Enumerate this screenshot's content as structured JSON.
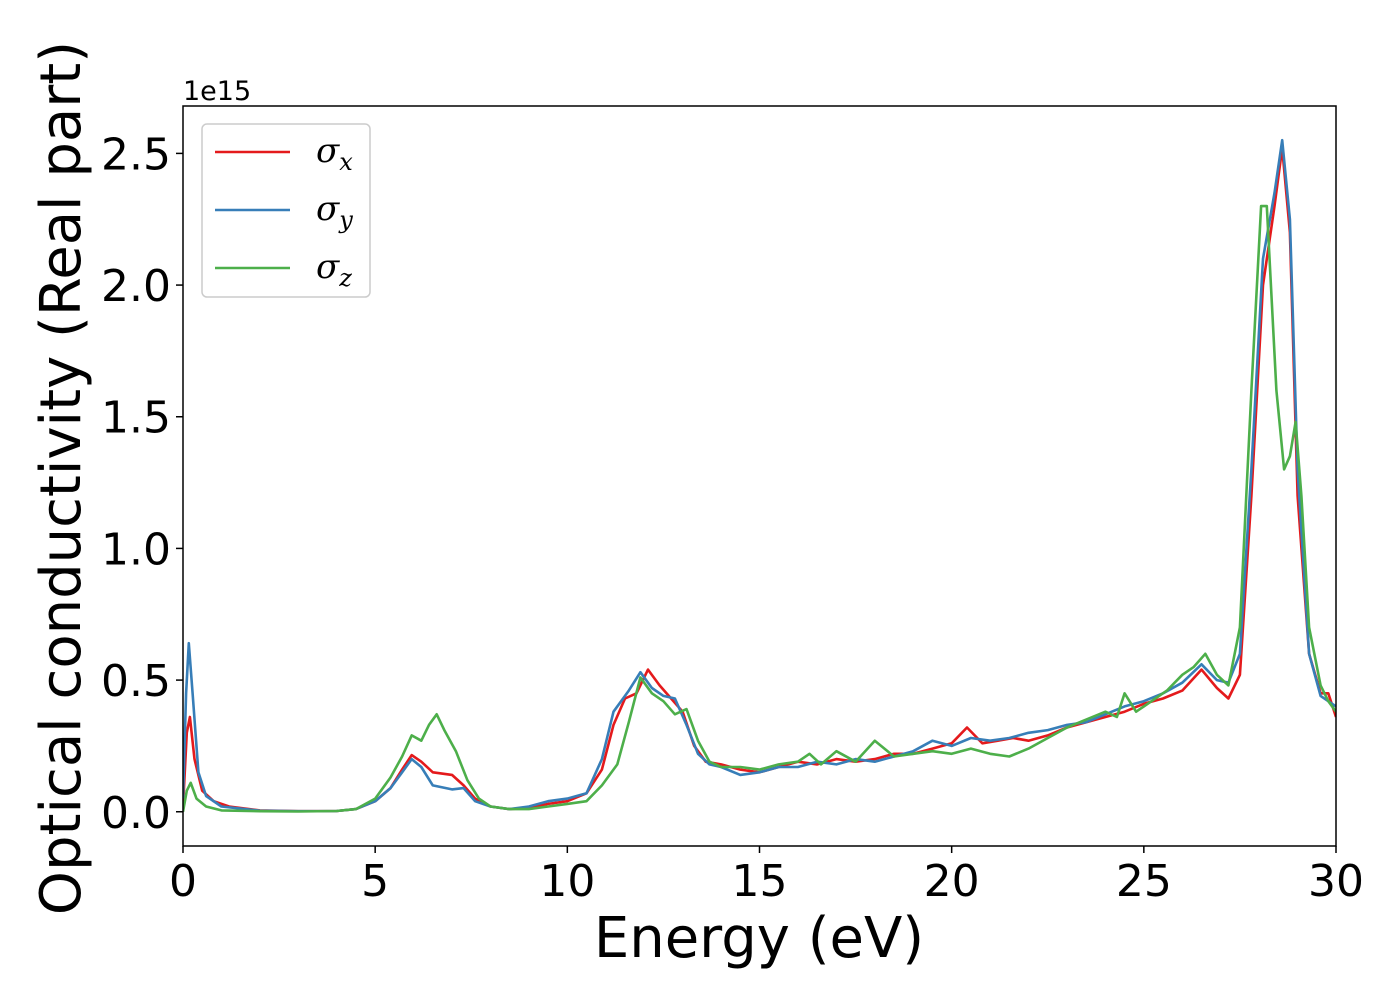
{
  "chart_data": {
    "type": "line",
    "title": "",
    "xlabel": "Energy (eV)",
    "ylabel": "Optical conductivity (Real part)",
    "y_offset_text": "1e15",
    "xlim": [
      0,
      30
    ],
    "ylim": [
      -0.13,
      2.68
    ],
    "xticks": [
      0,
      5,
      10,
      15,
      20,
      25,
      30
    ],
    "xtick_labels": [
      "0",
      "5",
      "10",
      "15",
      "20",
      "25",
      "30"
    ],
    "yticks": [
      0.0,
      0.5,
      1.0,
      1.5,
      2.0,
      2.5
    ],
    "ytick_labels": [
      "0.0",
      "0.5",
      "1.0",
      "1.5",
      "2.0",
      "2.5"
    ],
    "grid": false,
    "legend": {
      "position": "upper-left",
      "entries": [
        {
          "symbol": "σ",
          "sub": "x"
        },
        {
          "symbol": "σ",
          "sub": "y"
        },
        {
          "symbol": "σ",
          "sub": "z"
        }
      ]
    },
    "series": [
      {
        "color": "#e41a1c",
        "points": [
          [
            0,
            0.02
          ],
          [
            0.1,
            0.3
          ],
          [
            0.18,
            0.36
          ],
          [
            0.3,
            0.2
          ],
          [
            0.5,
            0.08
          ],
          [
            0.8,
            0.04
          ],
          [
            1.2,
            0.02
          ],
          [
            2,
            0.005
          ],
          [
            3,
            0.002
          ],
          [
            4,
            0.003
          ],
          [
            4.5,
            0.01
          ],
          [
            5,
            0.04
          ],
          [
            5.4,
            0.09
          ],
          [
            5.7,
            0.16
          ],
          [
            5.95,
            0.215
          ],
          [
            6.2,
            0.19
          ],
          [
            6.5,
            0.15
          ],
          [
            7,
            0.14
          ],
          [
            7.3,
            0.1
          ],
          [
            7.6,
            0.05
          ],
          [
            8,
            0.02
          ],
          [
            8.5,
            0.01
          ],
          [
            9,
            0.015
          ],
          [
            9.5,
            0.03
          ],
          [
            10,
            0.04
          ],
          [
            10.5,
            0.07
          ],
          [
            10.9,
            0.16
          ],
          [
            11.2,
            0.33
          ],
          [
            11.5,
            0.43
          ],
          [
            11.8,
            0.45
          ],
          [
            12.1,
            0.54
          ],
          [
            12.4,
            0.48
          ],
          [
            12.7,
            0.43
          ],
          [
            13,
            0.38
          ],
          [
            13.3,
            0.25
          ],
          [
            13.6,
            0.19
          ],
          [
            14,
            0.18
          ],
          [
            14.5,
            0.16
          ],
          [
            15,
            0.15
          ],
          [
            15.5,
            0.17
          ],
          [
            16,
            0.19
          ],
          [
            16.5,
            0.18
          ],
          [
            17,
            0.2
          ],
          [
            17.5,
            0.19
          ],
          [
            18,
            0.2
          ],
          [
            18.5,
            0.22
          ],
          [
            19,
            0.22
          ],
          [
            19.5,
            0.24
          ],
          [
            20,
            0.26
          ],
          [
            20.4,
            0.32
          ],
          [
            20.8,
            0.26
          ],
          [
            21.2,
            0.27
          ],
          [
            21.6,
            0.28
          ],
          [
            22,
            0.27
          ],
          [
            22.5,
            0.29
          ],
          [
            23,
            0.32
          ],
          [
            23.5,
            0.34
          ],
          [
            24,
            0.36
          ],
          [
            24.5,
            0.38
          ],
          [
            25,
            0.41
          ],
          [
            25.5,
            0.43
          ],
          [
            26,
            0.46
          ],
          [
            26.5,
            0.54
          ],
          [
            26.9,
            0.47
          ],
          [
            27.2,
            0.43
          ],
          [
            27.5,
            0.52
          ],
          [
            27.8,
            1.2
          ],
          [
            28.1,
            2.0
          ],
          [
            28.4,
            2.3
          ],
          [
            28.6,
            2.52
          ],
          [
            28.8,
            2.2
          ],
          [
            29.0,
            1.2
          ],
          [
            29.3,
            0.6
          ],
          [
            29.6,
            0.45
          ],
          [
            29.8,
            0.45
          ],
          [
            30,
            0.36
          ]
        ]
      },
      {
        "color": "#377eb8",
        "points": [
          [
            0,
            0.05
          ],
          [
            0.08,
            0.45
          ],
          [
            0.15,
            0.64
          ],
          [
            0.25,
            0.45
          ],
          [
            0.4,
            0.15
          ],
          [
            0.6,
            0.06
          ],
          [
            1,
            0.02
          ],
          [
            2,
            0.004
          ],
          [
            3,
            0.002
          ],
          [
            4,
            0.003
          ],
          [
            4.5,
            0.01
          ],
          [
            5,
            0.04
          ],
          [
            5.4,
            0.09
          ],
          [
            5.7,
            0.15
          ],
          [
            5.95,
            0.2
          ],
          [
            6.2,
            0.17
          ],
          [
            6.5,
            0.1
          ],
          [
            7,
            0.085
          ],
          [
            7.3,
            0.09
          ],
          [
            7.6,
            0.04
          ],
          [
            8,
            0.02
          ],
          [
            8.5,
            0.01
          ],
          [
            9,
            0.02
          ],
          [
            9.5,
            0.04
          ],
          [
            10,
            0.05
          ],
          [
            10.5,
            0.07
          ],
          [
            10.9,
            0.2
          ],
          [
            11.2,
            0.38
          ],
          [
            11.6,
            0.46
          ],
          [
            11.9,
            0.53
          ],
          [
            12.2,
            0.47
          ],
          [
            12.5,
            0.44
          ],
          [
            12.8,
            0.43
          ],
          [
            13.1,
            0.33
          ],
          [
            13.4,
            0.22
          ],
          [
            13.7,
            0.18
          ],
          [
            14,
            0.17
          ],
          [
            14.5,
            0.14
          ],
          [
            15,
            0.15
          ],
          [
            15.5,
            0.17
          ],
          [
            16,
            0.17
          ],
          [
            16.5,
            0.19
          ],
          [
            17,
            0.18
          ],
          [
            17.5,
            0.2
          ],
          [
            18,
            0.19
          ],
          [
            18.5,
            0.21
          ],
          [
            19,
            0.23
          ],
          [
            19.5,
            0.27
          ],
          [
            20,
            0.25
          ],
          [
            20.5,
            0.28
          ],
          [
            21,
            0.27
          ],
          [
            21.5,
            0.28
          ],
          [
            22,
            0.3
          ],
          [
            22.5,
            0.31
          ],
          [
            23,
            0.33
          ],
          [
            23.5,
            0.34
          ],
          [
            24,
            0.37
          ],
          [
            24.5,
            0.4
          ],
          [
            25,
            0.42
          ],
          [
            25.5,
            0.45
          ],
          [
            26,
            0.49
          ],
          [
            26.5,
            0.56
          ],
          [
            26.9,
            0.5
          ],
          [
            27.2,
            0.49
          ],
          [
            27.5,
            0.6
          ],
          [
            27.8,
            1.3
          ],
          [
            28.1,
            2.1
          ],
          [
            28.4,
            2.35
          ],
          [
            28.6,
            2.55
          ],
          [
            28.8,
            2.25
          ],
          [
            29.0,
            1.3
          ],
          [
            29.3,
            0.6
          ],
          [
            29.6,
            0.44
          ],
          [
            29.8,
            0.42
          ],
          [
            30,
            0.4
          ]
        ]
      },
      {
        "color": "#4daf4a",
        "points": [
          [
            0,
            0.0
          ],
          [
            0.1,
            0.08
          ],
          [
            0.2,
            0.11
          ],
          [
            0.35,
            0.05
          ],
          [
            0.6,
            0.02
          ],
          [
            1,
            0.005
          ],
          [
            2,
            0.002
          ],
          [
            3,
            0.001
          ],
          [
            4,
            0.003
          ],
          [
            4.5,
            0.01
          ],
          [
            5,
            0.05
          ],
          [
            5.4,
            0.13
          ],
          [
            5.7,
            0.21
          ],
          [
            5.95,
            0.29
          ],
          [
            6.2,
            0.27
          ],
          [
            6.4,
            0.33
          ],
          [
            6.6,
            0.37
          ],
          [
            6.8,
            0.31
          ],
          [
            7.1,
            0.23
          ],
          [
            7.4,
            0.12
          ],
          [
            7.7,
            0.05
          ],
          [
            8,
            0.02
          ],
          [
            8.5,
            0.01
          ],
          [
            9,
            0.01
          ],
          [
            9.5,
            0.02
          ],
          [
            10,
            0.03
          ],
          [
            10.5,
            0.04
          ],
          [
            10.9,
            0.1
          ],
          [
            11.3,
            0.18
          ],
          [
            11.6,
            0.34
          ],
          [
            11.9,
            0.51
          ],
          [
            12.2,
            0.45
          ],
          [
            12.5,
            0.42
          ],
          [
            12.8,
            0.37
          ],
          [
            13.1,
            0.39
          ],
          [
            13.4,
            0.27
          ],
          [
            13.7,
            0.19
          ],
          [
            14,
            0.17
          ],
          [
            14.5,
            0.17
          ],
          [
            15,
            0.16
          ],
          [
            15.5,
            0.18
          ],
          [
            16,
            0.19
          ],
          [
            16.3,
            0.22
          ],
          [
            16.6,
            0.18
          ],
          [
            17,
            0.23
          ],
          [
            17.5,
            0.19
          ],
          [
            18,
            0.27
          ],
          [
            18.5,
            0.21
          ],
          [
            19,
            0.22
          ],
          [
            19.5,
            0.23
          ],
          [
            20,
            0.22
          ],
          [
            20.5,
            0.24
          ],
          [
            21,
            0.22
          ],
          [
            21.5,
            0.21
          ],
          [
            22,
            0.24
          ],
          [
            22.5,
            0.28
          ],
          [
            23,
            0.32
          ],
          [
            23.5,
            0.35
          ],
          [
            24,
            0.38
          ],
          [
            24.3,
            0.36
          ],
          [
            24.5,
            0.45
          ],
          [
            24.8,
            0.38
          ],
          [
            25.2,
            0.42
          ],
          [
            25.6,
            0.46
          ],
          [
            26,
            0.52
          ],
          [
            26.3,
            0.55
          ],
          [
            26.6,
            0.6
          ],
          [
            26.9,
            0.52
          ],
          [
            27.2,
            0.48
          ],
          [
            27.5,
            0.7
          ],
          [
            27.8,
            1.6
          ],
          [
            28.05,
            2.3
          ],
          [
            28.2,
            2.3
          ],
          [
            28.45,
            1.6
          ],
          [
            28.65,
            1.3
          ],
          [
            28.8,
            1.35
          ],
          [
            28.95,
            1.48
          ],
          [
            29.1,
            1.2
          ],
          [
            29.3,
            0.7
          ],
          [
            29.6,
            0.48
          ],
          [
            29.8,
            0.42
          ],
          [
            30,
            0.38
          ]
        ]
      }
    ]
  }
}
